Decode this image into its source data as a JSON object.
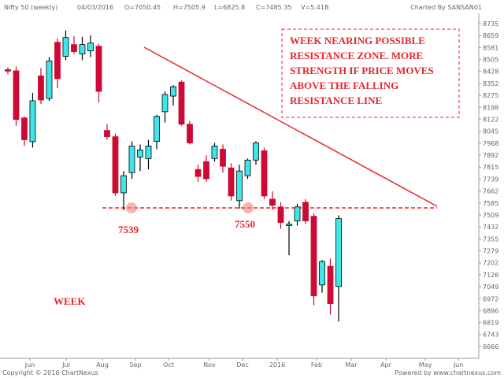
{
  "chart_data": {
    "type": "candlestick",
    "title": "Nifty 50 (weekly)",
    "header": {
      "date": "04/03/2016",
      "ohlc": [
        "O=7050.45",
        "H=7505.9",
        "L=6825.8",
        "C=7485.35"
      ],
      "volume": "V=5.41B",
      "credit": "Charted By SANSAN01"
    },
    "footer": {
      "copyright": "Copyright © 2016 ChartNexus",
      "powered": "Powered by www.chartnexus.com"
    },
    "annotations": {
      "note": [
        "WEEK NEARING POSSIBLE",
        "RESISTANCE ZONE. MORE",
        "STRENGTH IF PRICE MOVES",
        "ABOVE THE FALLING",
        "RESISTANCE LINE"
      ],
      "lows": [
        "7539",
        "7550"
      ],
      "period": "WEEK"
    },
    "up_color": "#3ee6ea",
    "down_color": "#cc0a36",
    "open": [
      8440,
      8432,
      8130,
      7978,
      8400,
      8255,
      8615,
      8525,
      8600,
      8540,
      8560,
      8590,
      8050,
      8010,
      7650,
      7780,
      7880,
      7870,
      7980,
      8170,
      8270,
      8360,
      8090,
      7800,
      7850,
      7870,
      7930,
      7810,
      7600,
      7760,
      7860,
      7920,
      7610,
      7560,
      7440,
      7470,
      7590,
      7500,
      7060,
      7180,
      7050.45
    ],
    "high": [
      8455,
      8460,
      8140,
      8290,
      8450,
      8520,
      8640,
      8690,
      8655,
      8650,
      8660,
      8605,
      8090,
      8030,
      7790,
      7980,
      7960,
      7990,
      8150,
      8300,
      8340,
      8370,
      8110,
      7830,
      7890,
      7970,
      7960,
      7840,
      7830,
      7870,
      7980,
      7940,
      7660,
      7590,
      7470,
      7580,
      7610,
      7520,
      7220,
      7230,
      7505.9
    ],
    "low": [
      8410,
      8080,
      7950,
      7940,
      8220,
      8240,
      8320,
      8500,
      8540,
      8500,
      8520,
      8230,
      7990,
      7630,
      7539,
      7740,
      7790,
      7800,
      7930,
      8100,
      8210,
      8080,
      7960,
      7720,
      7720,
      7850,
      7780,
      7600,
      7550,
      7740,
      7830,
      7610,
      7540,
      7420,
      7250,
      7440,
      7450,
      6930,
      7010,
      6870,
      6825.8
    ],
    "close": [
      8430,
      8120,
      7990,
      8240,
      8245,
      8495,
      8382,
      8645,
      8555,
      8600,
      8610,
      8300,
      8010,
      7650,
      7760,
      7950,
      7925,
      7950,
      8140,
      8280,
      8330,
      8090,
      7970,
      7755,
      7740,
      7950,
      7820,
      7630,
      7790,
      7860,
      7970,
      7630,
      7570,
      7460,
      7450,
      7560,
      7470,
      6990,
      7210,
      6940,
      7485.35
    ],
    "xlim": [
      -0.95,
      56.95
    ],
    "xticks": [
      {
        "value": 2.67,
        "label": "Jun"
      },
      {
        "value": 7.05,
        "label": "Jul"
      },
      {
        "value": 11.43,
        "label": "Aug"
      },
      {
        "value": 15.43,
        "label": "Sep"
      },
      {
        "value": 19.43,
        "label": "Oct"
      },
      {
        "value": 24.38,
        "label": "Nov"
      },
      {
        "value": 28.38,
        "label": "Dec"
      },
      {
        "value": 32.57,
        "label": "2016"
      },
      {
        "value": 37.33,
        "label": "Feb"
      },
      {
        "value": 41.52,
        "label": "Mar"
      },
      {
        "value": 45.71,
        "label": "Apr"
      },
      {
        "value": 50.48,
        "label": "May"
      },
      {
        "value": 54.48,
        "label": "Jun"
      }
    ],
    "ylim": [
      6590,
      8800
    ],
    "yticks": [
      8735,
      8659,
      8581,
      8505,
      8428,
      8352,
      8275,
      8198,
      8122,
      8045,
      7968,
      7892,
      7815,
      7739,
      7662,
      7585,
      7509,
      7432,
      7355,
      7279,
      7202,
      7126,
      7049,
      6972,
      6896,
      6819,
      6743,
      6666
    ]
  }
}
